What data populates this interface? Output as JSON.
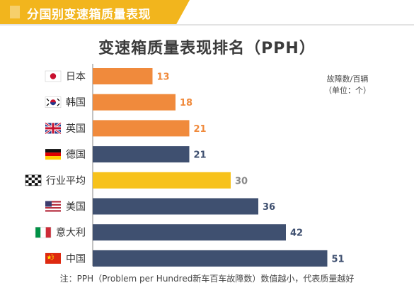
{
  "header": {
    "title": "分国别变速箱质量表现"
  },
  "chart_data": {
    "type": "bar",
    "orientation": "horizontal",
    "title": "变速箱质量表现排名（PPH）",
    "unit_label_line1": "故障数/百辆",
    "unit_label_line2": "（单位：个）",
    "xlim": [
      0,
      60
    ],
    "grid": false,
    "categories": [
      "日本",
      "韩国",
      "英国",
      "德国",
      "行业平均",
      "美国",
      "意大利",
      "中国"
    ],
    "values": [
      13,
      18,
      21,
      21,
      30,
      36,
      42,
      51
    ],
    "value_labels": [
      "13",
      "18",
      "21",
      "21",
      "30",
      "36",
      "42",
      "51"
    ],
    "flags": [
      "japan-flag-icon",
      "korea-flag-icon",
      "uk-flag-icon",
      "germany-flag-icon",
      "checkered-flag-icon",
      "usa-flag-icon",
      "italy-flag-icon",
      "china-flag-icon"
    ],
    "bar_colors": [
      "#f08a3c",
      "#f08a3c",
      "#f08a3c",
      "#3f5070",
      "#f7c21b",
      "#3f5070",
      "#3f5070",
      "#3f5070"
    ],
    "label_colors": [
      "#f08a3c",
      "#f08a3c",
      "#f08a3c",
      "#3f5070",
      "#888888",
      "#3f5070",
      "#3f5070",
      "#3f5070"
    ]
  },
  "footnote": "注：PPH（Problem per Hundred新车百车故障数）数值越小，代表质量越好"
}
